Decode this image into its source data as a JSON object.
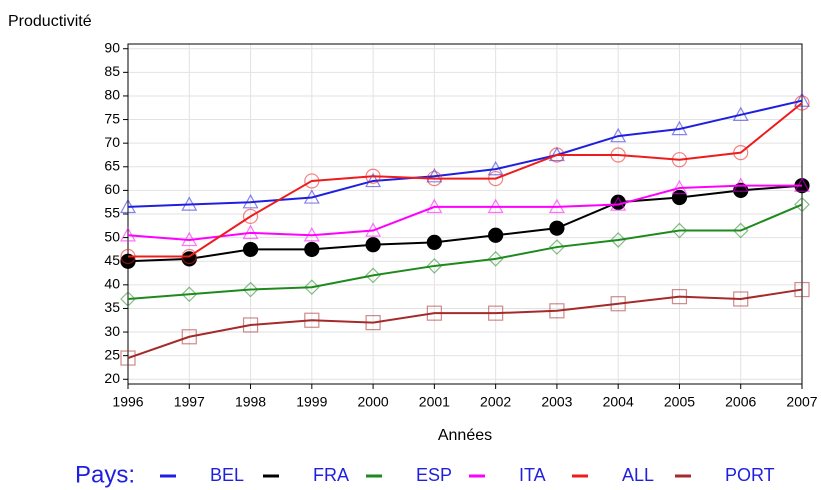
{
  "chart_data": {
    "type": "line",
    "y_label": "Productivité",
    "x_label": "Années",
    "legend_title": "Pays:",
    "x": [
      1996,
      1997,
      1998,
      1999,
      2000,
      2001,
      2002,
      2003,
      2004,
      2005,
      2006,
      2007
    ],
    "xlim": [
      1996,
      2007
    ],
    "xticks": [
      1996,
      1997,
      1998,
      1999,
      2000,
      2001,
      2002,
      2003,
      2004,
      2005,
      2006,
      2007
    ],
    "ylim": [
      19,
      91
    ],
    "yticks": [
      20,
      25,
      30,
      35,
      40,
      45,
      50,
      55,
      60,
      65,
      70,
      75,
      80,
      85,
      90
    ],
    "grid": true,
    "legend": "bottom",
    "series": [
      {
        "name": "BEL",
        "color": "#1f1fe0",
        "marker": "triangle",
        "values": [
          56.5,
          57,
          57.5,
          58.5,
          62,
          63,
          64.5,
          67.5,
          71.5,
          73,
          76,
          79
        ]
      },
      {
        "name": "FRA",
        "color": "#000000",
        "marker": "dot",
        "values": [
          45,
          45.5,
          47.5,
          47.5,
          48.5,
          49,
          50.5,
          52,
          57.5,
          58.5,
          60,
          61
        ]
      },
      {
        "name": "ESP",
        "color": "#1e8a1e",
        "marker": "diamond",
        "values": [
          37,
          38,
          39,
          39.5,
          42,
          44,
          45.5,
          48,
          49.5,
          51.5,
          51.5,
          57
        ]
      },
      {
        "name": "ITA",
        "color": "#ff00ff",
        "marker": "triangle",
        "values": [
          50.5,
          49.5,
          51,
          50.5,
          51.5,
          56.5,
          56.5,
          56.5,
          57,
          60.5,
          61,
          61
        ]
      },
      {
        "name": "ALL",
        "color": "#ee1c1c",
        "marker": "circle",
        "values": [
          46,
          46,
          54.5,
          62,
          63,
          62.5,
          62.5,
          67.5,
          67.5,
          66.5,
          68,
          78.5
        ]
      },
      {
        "name": "PORT",
        "color": "#a52a2a",
        "marker": "square",
        "values": [
          24.5,
          29,
          31.5,
          32.5,
          32,
          34,
          34,
          34.5,
          36,
          37.5,
          37,
          39
        ]
      }
    ]
  }
}
